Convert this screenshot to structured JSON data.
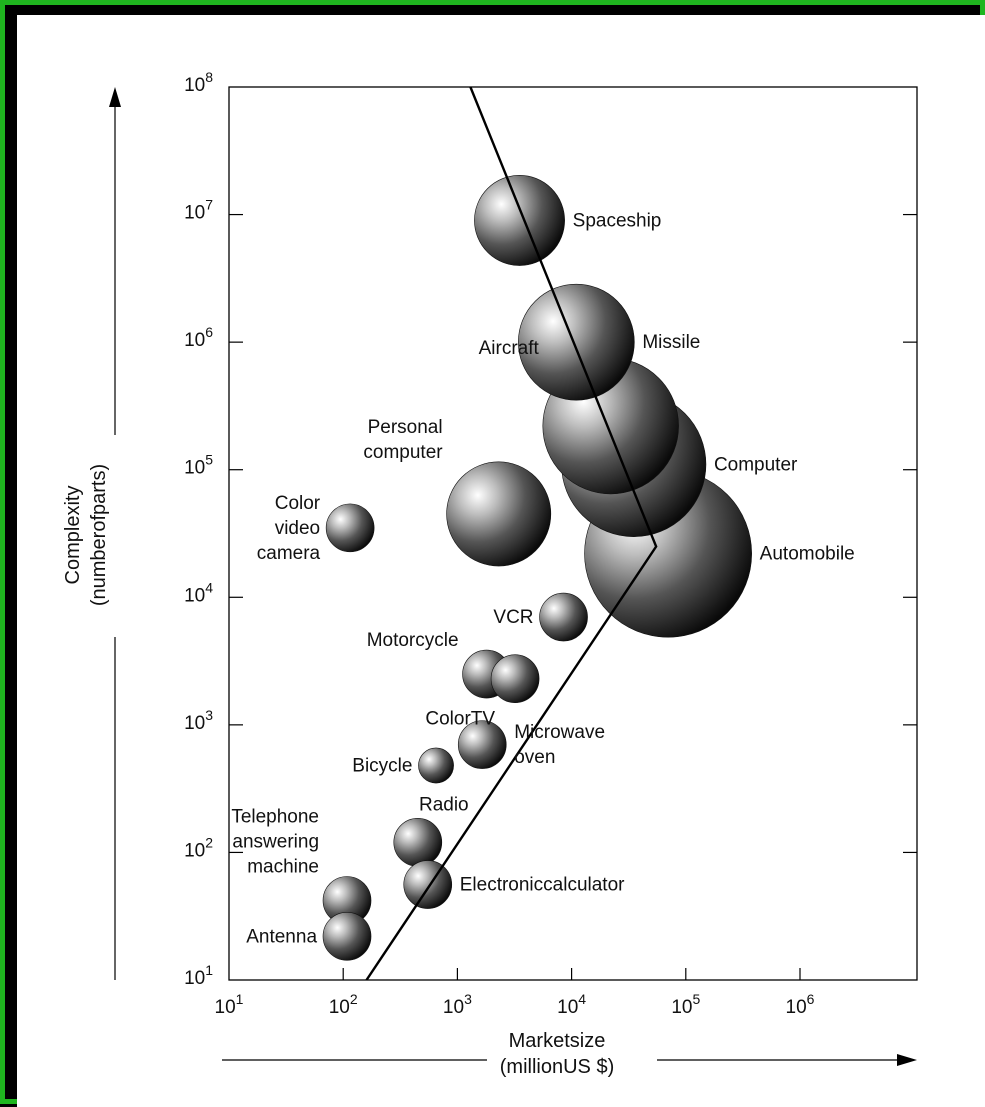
{
  "chart_data": {
    "type": "scatter",
    "subtype": "bubble",
    "x_scale": "log",
    "y_scale": "log",
    "xlim": [
      10,
      1000000000
    ],
    "ylim": [
      10,
      100000000
    ],
    "x_tick_labels": [
      {
        "value": 10,
        "base": "10",
        "exp": "1"
      },
      {
        "value": 100,
        "base": "10",
        "exp": "2"
      },
      {
        "value": 1000,
        "base": "10",
        "exp": "3"
      },
      {
        "value": 10000,
        "base": "10",
        "exp": "4"
      },
      {
        "value": 100000,
        "base": "10",
        "exp": "5"
      },
      {
        "value": 1000000,
        "base": "10",
        "exp": "6"
      }
    ],
    "y_tick_labels": [
      {
        "value": 10,
        "base": "10",
        "exp": "1"
      },
      {
        "value": 100,
        "base": "10",
        "exp": "2"
      },
      {
        "value": 1000,
        "base": "10",
        "exp": "3"
      },
      {
        "value": 10000,
        "base": "10",
        "exp": "4"
      },
      {
        "value": 100000,
        "base": "10",
        "exp": "5"
      },
      {
        "value": 1000000,
        "base": "10",
        "exp": "6"
      },
      {
        "value": 10000000,
        "base": "10",
        "exp": "7"
      },
      {
        "value": 100000000,
        "base": "10",
        "exp": "8"
      }
    ],
    "xlabel": [
      "Marketsize",
      "(millionUS $)"
    ],
    "ylabel": [
      "Complexity",
      "(numberofparts)"
    ],
    "grid": false,
    "points": [
      {
        "label": "Spaceship",
        "label_lines": [
          "Spaceship"
        ],
        "label_pos": "right",
        "x": 3500,
        "y": 9000000,
        "size": 2
      },
      {
        "label": "Missile",
        "label_lines": [
          "Missile"
        ],
        "label_pos": "right",
        "x": 11000,
        "y": 1000000,
        "size": 4
      },
      {
        "label": "Aircraft",
        "label_lines": [
          "Aircraft"
        ],
        "label_pos": "top-left",
        "x": 22000,
        "y": 220000,
        "size": 6
      },
      {
        "label": "Computer",
        "label_lines": [
          "Computer"
        ],
        "label_pos": "right",
        "x": 35000,
        "y": 110000,
        "size": 7
      },
      {
        "label": "Personal computer",
        "label_lines": [
          "Personal",
          "computer"
        ],
        "label_pos": "top-left",
        "x": 2300,
        "y": 45000,
        "size": 3
      },
      {
        "label": "Color video camera",
        "label_lines": [
          "Color",
          "video",
          "camera"
        ],
        "label_pos": "left",
        "x": 115,
        "y": 35000,
        "size": 1
      },
      {
        "label": "Automobile",
        "label_lines": [
          "Automobile"
        ],
        "label_pos": "right",
        "x": 70000,
        "y": 22000,
        "size": 10
      },
      {
        "label": "VCR",
        "label_lines": [
          "VCR"
        ],
        "label_pos": "left",
        "x": 8500,
        "y": 7000,
        "size": 1
      },
      {
        "label": "Motorcycle",
        "label_lines": [
          "Motorcycle"
        ],
        "label_pos": "top-left",
        "x": 1800,
        "y": 2500,
        "size": 1
      },
      {
        "label": "ColorTV",
        "label_lines": [
          "ColorTV"
        ],
        "label_pos": "bottom-left",
        "x": 3200,
        "y": 2300,
        "size": 1
      },
      {
        "label": "Microwave oven",
        "label_lines": [
          "Microwave",
          "oven"
        ],
        "label_pos": "right",
        "x": 1650,
        "y": 700,
        "size": 1
      },
      {
        "label": "Bicycle",
        "label_lines": [
          "Bicycle"
        ],
        "label_pos": "left",
        "x": 650,
        "y": 480,
        "size": 0.5
      },
      {
        "label": "Radio",
        "label_lines": [
          "Radio"
        ],
        "label_pos": "top",
        "x": 450,
        "y": 120,
        "size": 1
      },
      {
        "label": "Electroniccalculator",
        "label_lines": [
          "Electroniccalculator"
        ],
        "label_pos": "right",
        "x": 550,
        "y": 56,
        "size": 1
      },
      {
        "label": "Telephone answering machine",
        "label_lines": [
          "Telephone",
          "answering",
          "machine"
        ],
        "label_pos": "top-left",
        "x": 108,
        "y": 42,
        "size": 1
      },
      {
        "label": "Antenna",
        "label_lines": [
          "Antenna"
        ],
        "label_pos": "left",
        "x": 108,
        "y": 22,
        "size": 1
      }
    ],
    "trend_line": [
      {
        "x": 1300,
        "y": 100000000
      },
      {
        "x": 55000,
        "y": 25000
      },
      {
        "x": 160,
        "y": 10
      }
    ]
  }
}
